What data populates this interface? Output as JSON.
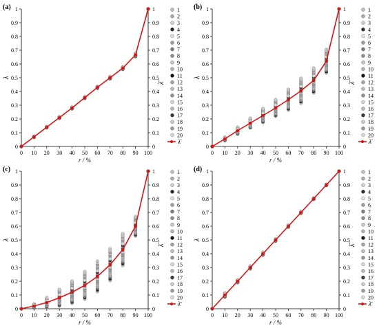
{
  "chart_data": [
    {
      "panel": "(a)",
      "type": "scatter",
      "xlabel": "r / %",
      "ylabel": "λ",
      "y2label": "λ̄",
      "xlim": [
        0,
        100
      ],
      "ylim": [
        0,
        1
      ],
      "x": [
        0,
        10,
        20,
        30,
        40,
        50,
        60,
        70,
        80,
        90,
        100
      ],
      "mean_line": [
        0,
        0.07,
        0.14,
        0.21,
        0.28,
        0.355,
        0.43,
        0.5,
        0.57,
        0.665,
        1.0
      ],
      "spread": [
        0,
        0.004,
        0.004,
        0.005,
        0.006,
        0.006,
        0.007,
        0.008,
        0.009,
        0.012,
        0
      ]
    },
    {
      "panel": "(b)",
      "type": "scatter",
      "xlabel": "r / %",
      "ylabel": "λ",
      "y2label": "λ̄",
      "xlim": [
        0,
        100
      ],
      "ylim": [
        0,
        1
      ],
      "x": [
        0,
        10,
        20,
        30,
        40,
        50,
        60,
        70,
        80,
        90,
        100
      ],
      "mean_line": [
        0,
        0.055,
        0.115,
        0.17,
        0.225,
        0.28,
        0.34,
        0.405,
        0.48,
        0.62,
        1.0
      ],
      "spread": [
        0,
        0.012,
        0.025,
        0.035,
        0.05,
        0.06,
        0.075,
        0.09,
        0.09,
        0.085,
        0
      ]
    },
    {
      "panel": "(c)",
      "type": "scatter",
      "xlabel": "r / %",
      "ylabel": "λ",
      "y2label": "λ̄",
      "xlim": [
        0,
        100
      ],
      "ylim": [
        0,
        1
      ],
      "x": [
        0,
        10,
        20,
        30,
        40,
        50,
        60,
        70,
        80,
        90,
        100
      ],
      "mean_line": [
        0,
        0.02,
        0.045,
        0.08,
        0.12,
        0.17,
        0.235,
        0.32,
        0.43,
        0.6,
        1.0
      ],
      "spread": [
        0,
        0.015,
        0.035,
        0.06,
        0.08,
        0.1,
        0.11,
        0.115,
        0.115,
        0.07,
        0
      ]
    },
    {
      "panel": "(d)",
      "type": "scatter",
      "xlabel": "r / %",
      "ylabel": "λ",
      "y2label": "λ̄",
      "xlim": [
        0,
        100
      ],
      "ylim": [
        0,
        1
      ],
      "x": [
        0,
        10,
        20,
        30,
        40,
        50,
        60,
        70,
        80,
        90,
        100
      ],
      "mean_line": [
        0,
        0.1,
        0.2,
        0.3,
        0.4,
        0.5,
        0.6,
        0.7,
        0.8,
        0.9,
        1.0
      ],
      "spread": [
        0,
        0.015,
        0.01,
        0.01,
        0.01,
        0.008,
        0.007,
        0.006,
        0.005,
        0.004,
        0
      ]
    }
  ],
  "shared": {
    "xticks": [
      "0",
      "10",
      "20",
      "30",
      "40",
      "50",
      "60",
      "70",
      "80",
      "90",
      "100"
    ],
    "yticks": [
      "0",
      "0.1",
      "0.2",
      "0.3",
      "0.4",
      "0.5",
      "0.6",
      "0.7",
      "0.8",
      "0.9",
      "1"
    ],
    "legend_labels": [
      "1",
      "2",
      "3",
      "4",
      "5",
      "6",
      "7",
      "8",
      "9",
      "10",
      "11",
      "12",
      "13",
      "14",
      "15",
      "16",
      "17",
      "18",
      "19",
      "20"
    ],
    "legend_mean_label": "λ̄",
    "mean_line_color": "#dd1111",
    "marker_shades": [
      "#bdbdbd",
      "#a9a9a9",
      "#cfcfcf",
      "#2b2b2b",
      "#dcdcdc",
      "#9d9d9d",
      "#7b7b7b",
      "#8e8e8e",
      "#c4c4c4",
      "#b3b3b3",
      "#161616",
      "#a1a1a1",
      "#bcbcbc",
      "#909090",
      "#d4d4d4",
      "#b8b8b8",
      "#3a3a3a",
      "#c9c9c9",
      "#9a9a9a",
      "#d7d7d7"
    ]
  }
}
